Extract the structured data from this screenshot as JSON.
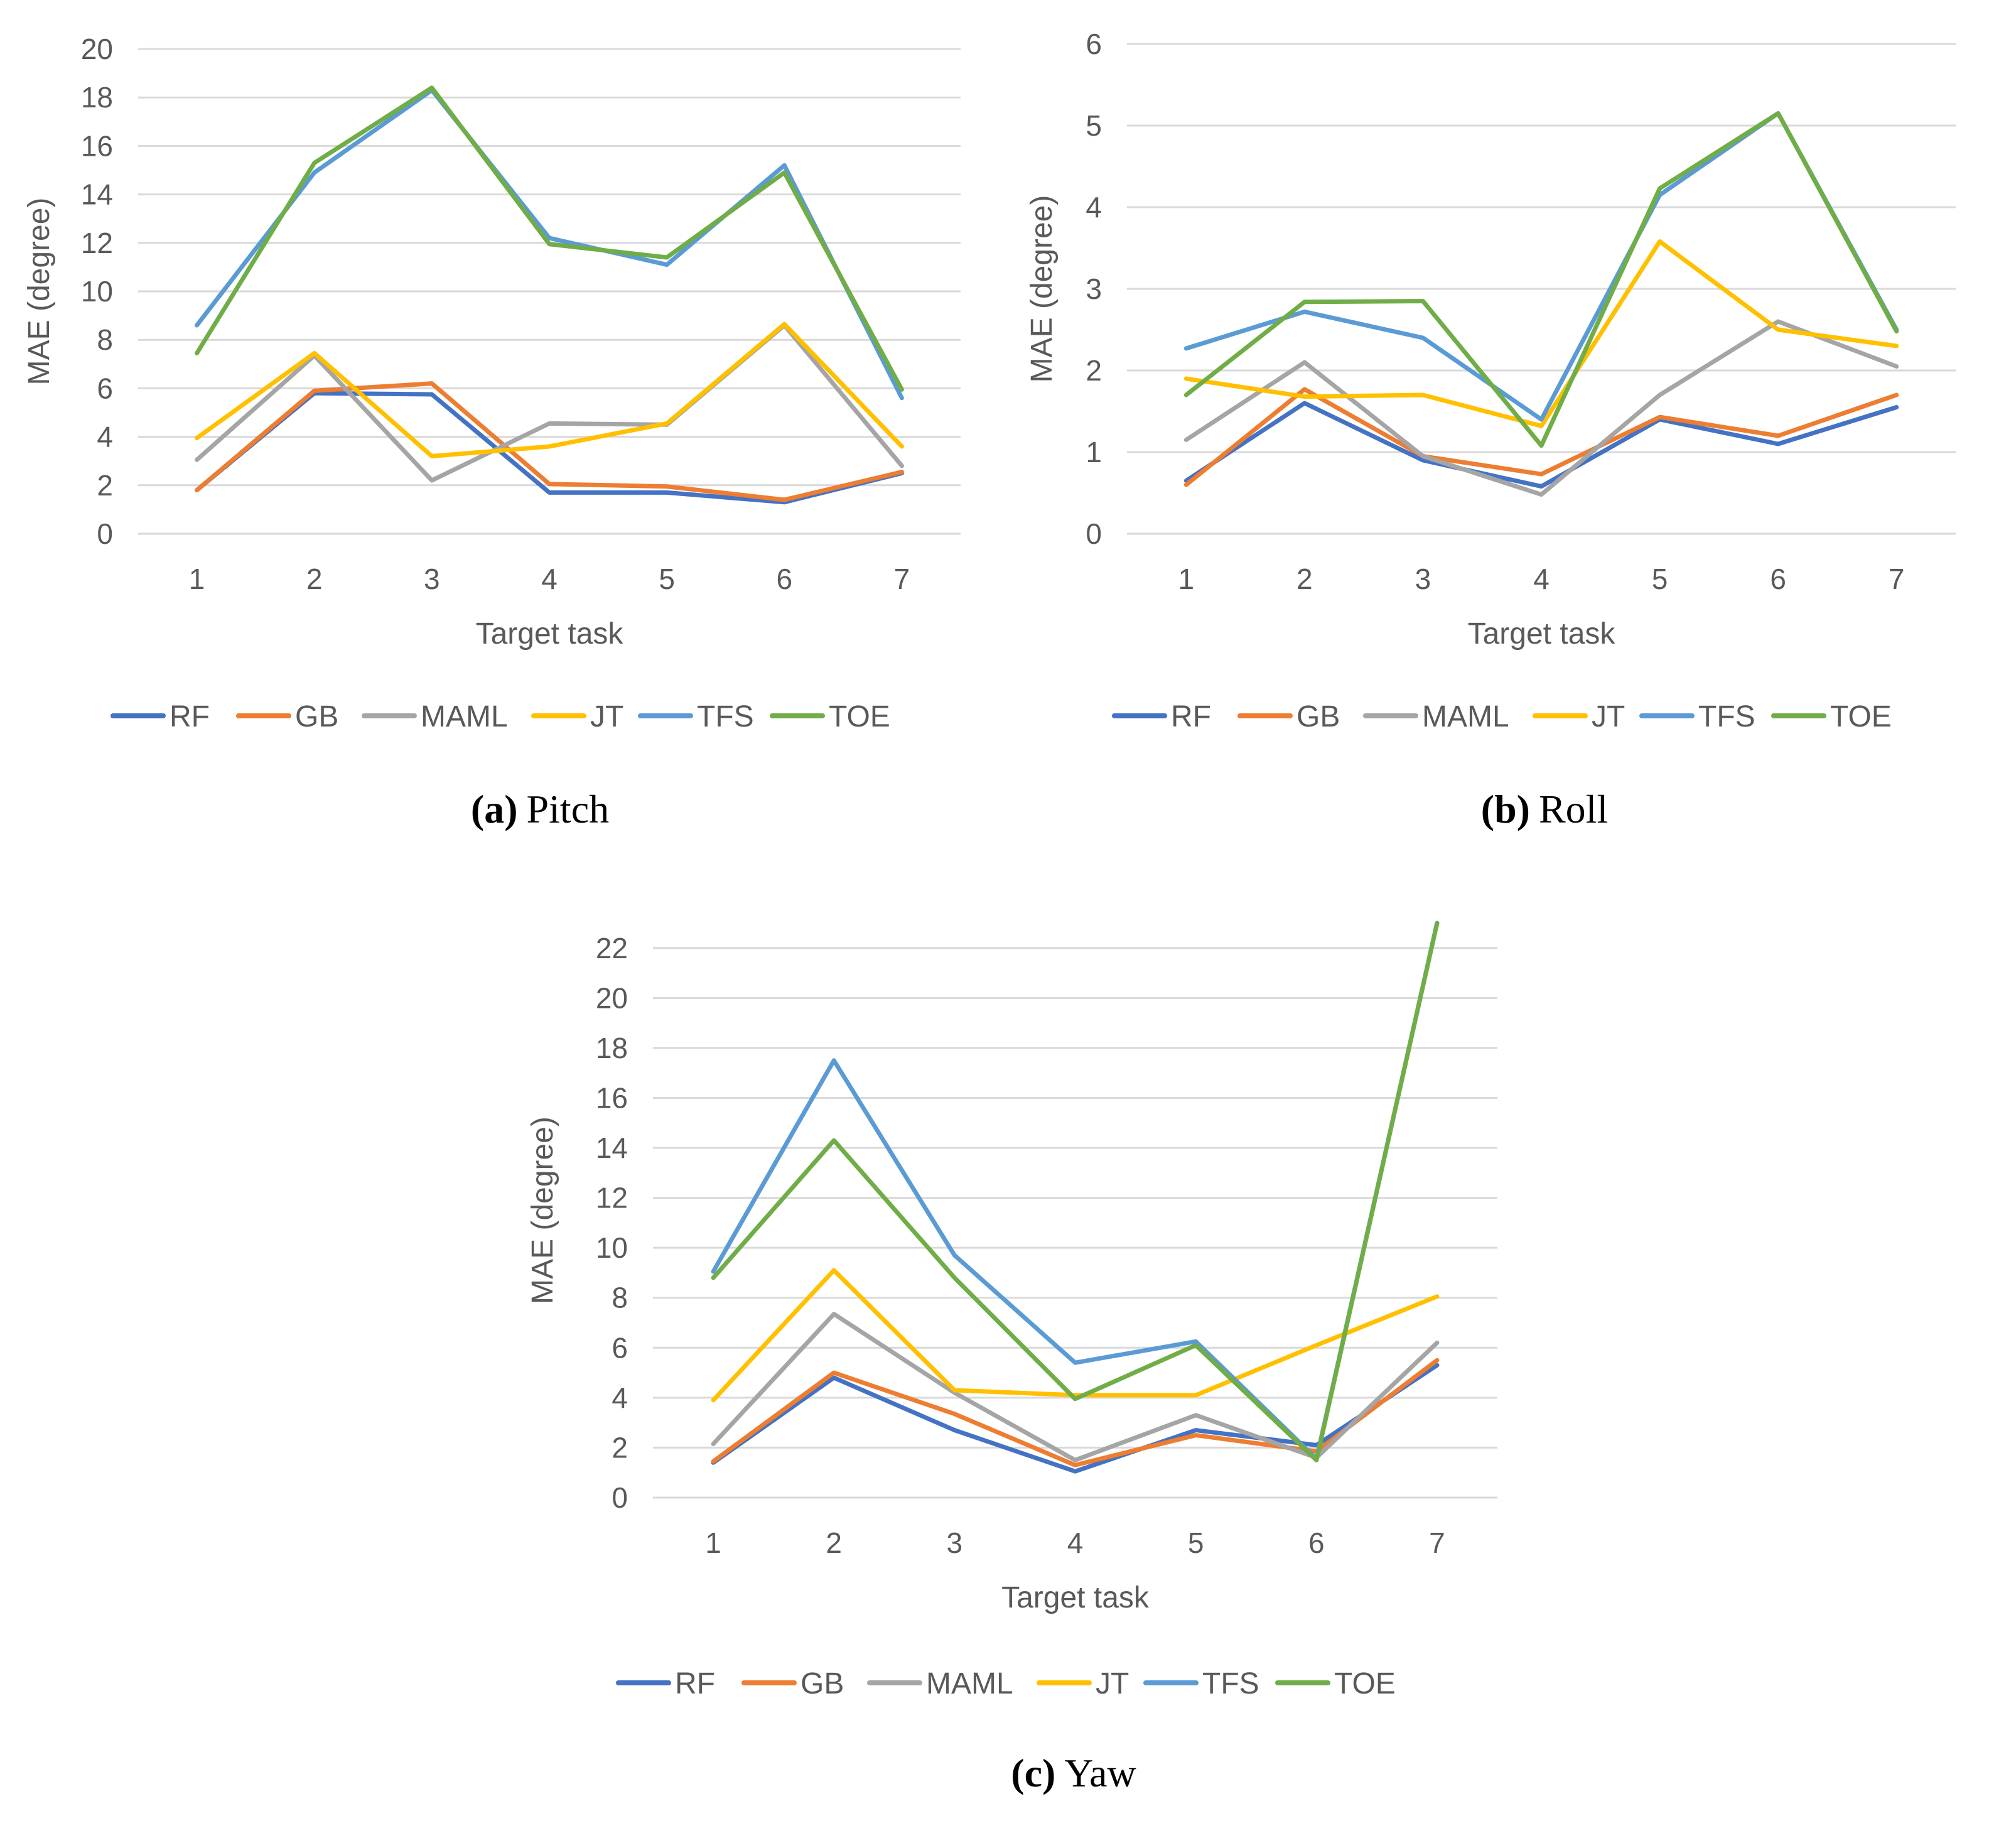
{
  "series_styles": [
    {
      "name": "RF",
      "color": "#4472c4"
    },
    {
      "name": "GB",
      "color": "#ed7d31"
    },
    {
      "name": "MAML",
      "color": "#a5a5a5"
    },
    {
      "name": "JT",
      "color": "#ffc000"
    },
    {
      "name": "TFS",
      "color": "#5b9bd5"
    },
    {
      "name": "TOE",
      "color": "#70ad47"
    }
  ],
  "chart_data": [
    {
      "type": "line",
      "caption_letter": "(a)",
      "caption_text": "Pitch",
      "xlabel": "Target task",
      "ylabel": "MAE (degree)",
      "categories": [
        "1",
        "2",
        "3",
        "4",
        "5",
        "6",
        "7"
      ],
      "ylim": [
        0,
        20
      ],
      "yticks": [
        0,
        2,
        4,
        6,
        8,
        10,
        12,
        14,
        16,
        18,
        20
      ],
      "grid": true,
      "legend_position": "bottom",
      "series": [
        {
          "name": "RF",
          "values": [
            1.8,
            5.8,
            5.75,
            1.7,
            1.7,
            1.3,
            2.5
          ]
        },
        {
          "name": "GB",
          "values": [
            1.8,
            5.9,
            6.2,
            2.05,
            1.95,
            1.4,
            2.55
          ]
        },
        {
          "name": "MAML",
          "values": [
            3.05,
            7.35,
            2.2,
            4.55,
            4.5,
            8.6,
            2.8
          ]
        },
        {
          "name": "JT",
          "values": [
            3.95,
            7.45,
            3.2,
            3.6,
            4.55,
            8.65,
            3.6
          ]
        },
        {
          "name": "TFS",
          "values": [
            8.6,
            14.9,
            18.3,
            12.2,
            11.1,
            15.2,
            5.6
          ]
        },
        {
          "name": "TOE",
          "values": [
            7.45,
            15.3,
            18.4,
            11.95,
            11.4,
            14.9,
            5.95
          ]
        }
      ]
    },
    {
      "type": "line",
      "caption_letter": "(b)",
      "caption_text": "Roll",
      "xlabel": "Target task",
      "ylabel": "MAE (degree)",
      "categories": [
        "1",
        "2",
        "3",
        "4",
        "5",
        "6",
        "7"
      ],
      "ylim": [
        0,
        6
      ],
      "yticks": [
        0,
        1,
        2,
        3,
        4,
        5,
        6
      ],
      "grid": true,
      "legend_position": "bottom",
      "series": [
        {
          "name": "RF",
          "values": [
            0.65,
            1.6,
            0.9,
            0.58,
            1.4,
            1.1,
            1.55
          ]
        },
        {
          "name": "GB",
          "values": [
            0.6,
            1.77,
            0.95,
            0.73,
            1.43,
            1.2,
            1.7
          ]
        },
        {
          "name": "MAML",
          "values": [
            1.15,
            2.1,
            0.95,
            0.48,
            1.7,
            2.6,
            2.05
          ]
        },
        {
          "name": "JT",
          "values": [
            1.9,
            1.68,
            1.7,
            1.32,
            3.58,
            2.5,
            2.3
          ]
        },
        {
          "name": "TFS",
          "values": [
            2.27,
            2.72,
            2.4,
            1.4,
            4.15,
            5.15,
            2.5
          ]
        },
        {
          "name": "TOE",
          "values": [
            1.7,
            2.84,
            2.85,
            1.08,
            4.23,
            5.15,
            2.48
          ]
        }
      ]
    },
    {
      "type": "line",
      "caption_letter": "(c)",
      "caption_text": "Yaw",
      "xlabel": "Target task",
      "ylabel": "MAE (degree)",
      "categories": [
        "1",
        "2",
        "3",
        "4",
        "5",
        "6",
        "7"
      ],
      "ylim": [
        0,
        23
      ],
      "yticks": [
        0,
        2,
        4,
        6,
        8,
        10,
        12,
        14,
        16,
        18,
        20,
        22
      ],
      "grid": true,
      "legend_position": "bottom",
      "series": [
        {
          "name": "RF",
          "values": [
            1.4,
            4.8,
            2.7,
            1.05,
            2.7,
            2.1,
            5.3
          ]
        },
        {
          "name": "GB",
          "values": [
            1.45,
            5.0,
            3.35,
            1.3,
            2.5,
            1.85,
            5.5
          ]
        },
        {
          "name": "MAML",
          "values": [
            2.15,
            7.35,
            4.2,
            1.5,
            3.3,
            1.6,
            6.2
          ]
        },
        {
          "name": "JT",
          "values": [
            3.9,
            9.1,
            4.3,
            4.1,
            4.1,
            6.1,
            8.05
          ]
        },
        {
          "name": "TFS",
          "values": [
            9.05,
            17.5,
            9.7,
            5.4,
            6.25,
            1.55,
            23.0
          ]
        },
        {
          "name": "TOE",
          "values": [
            8.8,
            14.3,
            8.8,
            3.95,
            6.1,
            1.5,
            23.0
          ]
        }
      ]
    }
  ]
}
